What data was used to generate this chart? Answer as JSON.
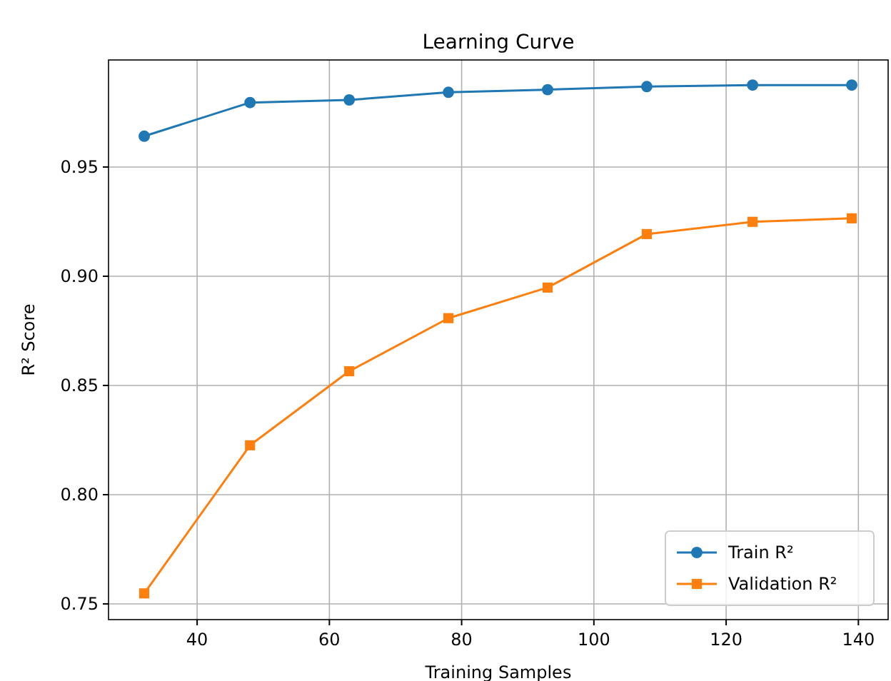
{
  "chart_data": {
    "type": "line",
    "title": "Learning Curve",
    "xlabel": "Training Samples",
    "ylabel": "R² Score",
    "x": [
      32,
      48,
      63,
      78,
      93,
      108,
      124,
      139
    ],
    "series": [
      {
        "name": "Train R²",
        "color": "#1f77b4",
        "marker": "circle",
        "values": [
          0.9641,
          0.9795,
          0.9807,
          0.9842,
          0.9854,
          0.9868,
          0.9875,
          0.9875
        ]
      },
      {
        "name": "Validation R²",
        "color": "#ff7f0e",
        "marker": "square",
        "values": [
          0.7548,
          0.8226,
          0.8565,
          0.8808,
          0.8948,
          0.9193,
          0.9249,
          0.9265
        ]
      }
    ],
    "xlim": [
      26.6,
      144.5
    ],
    "xticks": [
      40,
      60,
      80,
      100,
      120,
      140
    ],
    "ylim": [
      0.7428,
      0.999
    ],
    "yticks": [
      {
        "value": 0.75,
        "label": "0.75"
      },
      {
        "value": 0.8,
        "label": "0.80"
      },
      {
        "value": 0.85,
        "label": "0.85"
      },
      {
        "value": 0.9,
        "label": "0.90"
      },
      {
        "value": 0.95,
        "label": "0.95"
      }
    ],
    "grid": true,
    "legend": "bottom right"
  }
}
